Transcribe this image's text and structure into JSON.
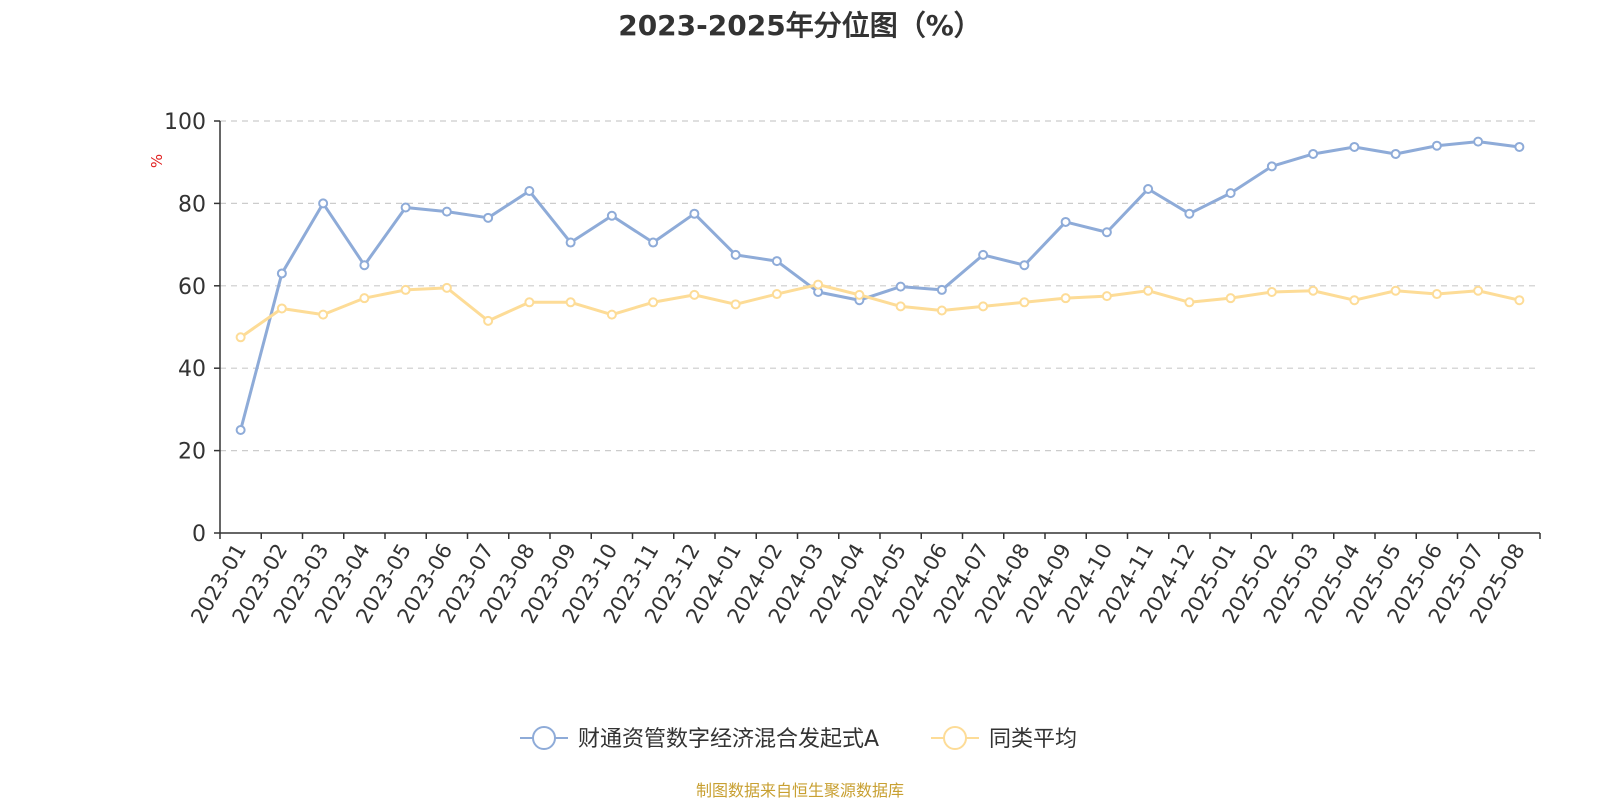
{
  "chart_data": {
    "type": "line",
    "title": "2023-2025年分位图（%）",
    "ylabel": "%",
    "xlabel": "",
    "ylim": [
      0,
      100
    ],
    "yticks": [
      0,
      20,
      40,
      60,
      80,
      100
    ],
    "grid": true,
    "legend_position": "bottom",
    "categories": [
      "2023-01",
      "2023-02",
      "2023-03",
      "2023-04",
      "2023-05",
      "2023-06",
      "2023-07",
      "2023-08",
      "2023-09",
      "2023-10",
      "2023-11",
      "2023-12",
      "2024-01",
      "2024-02",
      "2024-03",
      "2024-04",
      "2024-05",
      "2024-06",
      "2024-07",
      "2024-08",
      "2024-09",
      "2024-10",
      "2024-11",
      "2024-12",
      "2025-01",
      "2025-02",
      "2025-03",
      "2025-04",
      "2025-05",
      "2025-06",
      "2025-07",
      "2025-08"
    ],
    "series": [
      {
        "name": "财通资管数字经济混合发起式A",
        "color": "#8eabd8",
        "values": [
          25,
          63,
          80,
          65,
          79,
          78,
          76.5,
          83,
          70.5,
          77,
          70.5,
          77.5,
          67.5,
          66,
          58.5,
          56.5,
          59.8,
          59,
          67.5,
          65,
          75.5,
          73,
          83.5,
          77.5,
          82.5,
          89,
          92,
          93.7,
          92,
          94,
          95,
          93.7
        ]
      },
      {
        "name": "同类平均",
        "color": "#fddc97",
        "values": [
          47.5,
          54.5,
          53,
          57,
          59,
          59.5,
          51.5,
          56,
          56,
          53,
          56,
          57.8,
          55.5,
          58,
          60.3,
          57.8,
          55,
          54,
          55,
          56,
          57,
          57.5,
          58.8,
          56,
          57,
          58.5,
          58.8,
          56.5,
          58.8,
          58,
          58.8,
          56.5
        ]
      }
    ]
  },
  "source_note": "制图数据来自恒生聚源数据库"
}
